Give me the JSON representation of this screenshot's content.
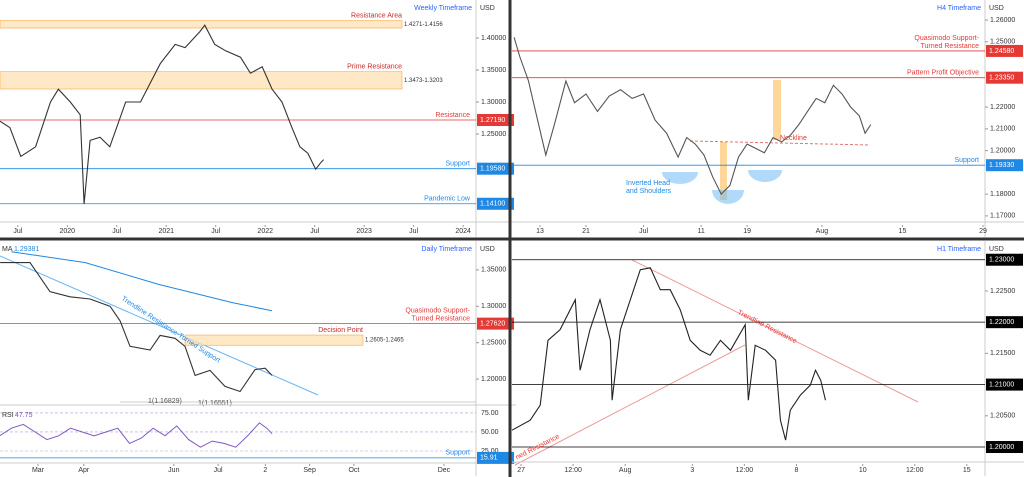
{
  "chart_data": [
    {
      "type": "line",
      "title": "Weekly Timeframe",
      "currency": "USD",
      "color": "#333333",
      "x": [
        2019.32,
        2019.42,
        2019.53,
        2019.68,
        2019.83,
        2019.91,
        2020.03,
        2020.13,
        2020.17,
        2020.23,
        2020.33,
        2020.43,
        2020.59,
        2020.74,
        2020.84,
        2020.94,
        2021.09,
        2021.19,
        2021.34,
        2021.39,
        2021.49,
        2021.6,
        2021.75,
        2021.85,
        2021.97,
        2022.07,
        2022.17,
        2022.27,
        2022.35,
        2022.43,
        2022.51,
        2022.56,
        2022.59
      ],
      "values": [
        1.27,
        1.26,
        1.215,
        1.23,
        1.3,
        1.32,
        1.3,
        1.28,
        1.141,
        1.24,
        1.245,
        1.23,
        1.3,
        1.3,
        1.33,
        1.36,
        1.39,
        1.385,
        1.41,
        1.42,
        1.39,
        1.38,
        1.37,
        1.345,
        1.355,
        1.32,
        1.3,
        1.26,
        1.23,
        1.22,
        1.195,
        1.205,
        1.21
      ],
      "xlim": [
        2019.32,
        2024.13
      ],
      "ylim": [
        1.1125,
        1.4594
      ],
      "xticks": [
        {
          "value": 2019.5,
          "label": "Jul"
        },
        2020,
        {
          "value": 2020.5,
          "label": "Jul"
        },
        2021,
        {
          "value": 2021.5,
          "label": "Jul"
        },
        2022,
        {
          "value": 2022.5,
          "label": "Jul"
        },
        2023,
        {
          "value": 2023.5,
          "label": "Jul"
        },
        2024
      ],
      "yticks": [
        {
          "value": 1.4,
          "label": "1.40000"
        },
        {
          "value": 1.35,
          "label": "1.35000"
        },
        {
          "value": 1.3,
          "label": "1.30000"
        },
        {
          "value": 1.25,
          "label": "1.25000"
        }
      ],
      "zones": [
        {
          "label": "Resistance Area",
          "range_label": "1.4271-1.4156",
          "high": 1.4271,
          "low": 1.4156
        },
        {
          "label": "Prime Resistance",
          "range_label": "1.3473-1.3203",
          "high": 1.3473,
          "low": 1.3203
        }
      ],
      "levels": [
        {
          "label": [
            "Resistance"
          ],
          "value": 1.2719,
          "value_label": "1.27190",
          "color": "#e53935"
        },
        {
          "label": [
            "Support"
          ],
          "value": 1.1958,
          "value_label": "1.19580",
          "color": "#1e88e5"
        },
        {
          "label": [
            "Pandemic Low"
          ],
          "value": 1.141,
          "value_label": "1.14100",
          "color": "#1e88e5"
        }
      ]
    },
    {
      "type": "line",
      "title": "H4 Timeframe",
      "currency": "USD",
      "color": "#555555",
      "x": [
        8.5,
        9.5,
        11,
        12.5,
        14,
        15.5,
        17.5,
        19,
        21,
        23,
        25,
        27,
        29,
        31,
        33,
        35,
        37,
        38.5,
        40,
        41.5,
        43,
        44.5,
        46,
        47.5,
        49,
        50.5,
        52,
        53.5,
        55,
        56.5,
        58,
        59.5,
        61,
        62.5,
        64,
        65.5,
        67,
        68.5,
        69.5,
        70.5
      ],
      "values": [
        1.252,
        1.243,
        1.232,
        1.215,
        1.198,
        1.212,
        1.232,
        1.222,
        1.226,
        1.218,
        1.225,
        1.228,
        1.224,
        1.226,
        1.214,
        1.208,
        1.197,
        1.206,
        1.203,
        1.198,
        1.188,
        1.18,
        1.184,
        1.197,
        1.203,
        1.201,
        1.199,
        1.206,
        1.204,
        1.207,
        1.212,
        1.218,
        1.224,
        1.222,
        1.23,
        1.226,
        1.22,
        1.216,
        1.208,
        1.212
      ],
      "xlim": [
        8.13,
        90.35
      ],
      "ylim": [
        1.1672,
        1.2692
      ],
      "xticks": [
        13,
        21,
        {
          "value": 31,
          "label": "Jul"
        },
        {
          "value": 41,
          "label": "11"
        },
        {
          "value": 49,
          "label": "19"
        },
        {
          "value": 62,
          "label": "Aug"
        },
        {
          "value": 76,
          "label": "15"
        },
        {
          "value": 90,
          "label": "29"
        }
      ],
      "yticks": [
        {
          "value": 1.26,
          "label": "1.26000"
        },
        {
          "value": 1.25,
          "label": "1.25000"
        },
        {
          "value": 1.22,
          "label": "1.22000"
        },
        {
          "value": 1.21,
          "label": "1.21000"
        },
        {
          "value": 1.2,
          "label": "1.20000"
        },
        {
          "value": 1.18,
          "label": "1.18000"
        },
        {
          "value": 1.17,
          "label": "1.17000"
        }
      ],
      "levels": [
        {
          "label": [
            "Quasimodo Support-",
            "Turned Resistance"
          ],
          "value": 1.2458,
          "value_label": "1.24580",
          "color": "#e53935"
        },
        {
          "label": [
            "Pattern Profit Objective"
          ],
          "value": 1.2335,
          "value_label": "1.23350",
          "color": "#e53935"
        },
        {
          "label": [
            "Support"
          ],
          "value": 1.1933,
          "value_label": "1.19330",
          "color": "#1e88e5"
        }
      ],
      "annotations": [
        [
          "Neckline"
        ],
        [
          "Inverted Head",
          "and Shoulders"
        ]
      ]
    },
    {
      "type": "line",
      "title": "Daily Timeframe",
      "currency": "USD",
      "color": "#333333",
      "x": [
        2.3,
        22.6,
        36.1,
        49.7,
        63.2,
        76.8,
        83.6,
        90.3,
        103.9,
        110.7,
        120.8,
        127.6,
        134.4,
        144.5,
        154.7,
        164.9,
        175,
        181.8,
        186.5
      ],
      "values": [
        1.36,
        1.36,
        1.32,
        1.313,
        1.31,
        1.3,
        1.28,
        1.245,
        1.24,
        1.26,
        1.256,
        1.245,
        1.205,
        1.212,
        1.19,
        1.183,
        1.213,
        1.215,
        1.205
      ],
      "xlim": [
        2.25,
        324.7
      ],
      "ylim": [
        1.1644,
        1.3897
      ],
      "xticks": [
        {
          "value": 28,
          "label": "Mar"
        },
        {
          "value": 59,
          "label": "Apr"
        },
        {
          "value": 120,
          "label": "Jun"
        },
        {
          "value": 150,
          "label": "Jul"
        },
        {
          "value": 182,
          "label": "2"
        },
        {
          "value": 212,
          "label": "Sep"
        },
        {
          "value": 242,
          "label": "Oct"
        },
        {
          "value": 303,
          "label": "Dec"
        }
      ],
      "yticks": [
        {
          "value": 1.35,
          "label": "1.35000"
        },
        {
          "value": 1.3,
          "label": "1.30000"
        },
        {
          "value": 1.25,
          "label": "1.25000"
        },
        {
          "value": 1.2,
          "label": "1.20000"
        }
      ],
      "zones": [
        {
          "label": "Decision Point",
          "range_label": "1.2605-1.2465",
          "high": 1.2605,
          "low": 1.2465
        }
      ],
      "levels": [
        {
          "label": [
            "Quasimodo Support-",
            "Turned Resistance"
          ],
          "value": 1.2762,
          "value_label": "1.27620",
          "color": "#e53935"
        }
      ],
      "ma": {
        "name": "MA",
        "last": 1.29381,
        "color": "#1e88e5",
        "x": [
          10,
          60,
          110,
          160,
          186.5
        ],
        "values": [
          1.375,
          1.36,
          1.33,
          1.305,
          1.29381
        ]
      },
      "annotations": [
        [
          "Trendline Resistance-Turned Support"
        ],
        [
          "1(1.16829)"
        ],
        [
          "1(1.16551)"
        ]
      ],
      "rsi": {
        "name": "RSI",
        "last": 47.75,
        "color": "#7e57c2",
        "x": [
          2,
          10,
          18,
          26,
          34,
          42,
          50,
          58,
          66,
          74,
          82,
          90,
          98,
          106,
          114,
          122,
          130,
          138,
          146,
          154,
          162,
          170,
          178,
          183,
          186.5
        ],
        "values": [
          45,
          55,
          60,
          50,
          40,
          45,
          55,
          50,
          45,
          50,
          55,
          35,
          42,
          55,
          45,
          58,
          40,
          30,
          38,
          35,
          30,
          45,
          62,
          55,
          47.75
        ],
        "ylim": [
          9.2,
          85.5
        ],
        "yticks": [
          {
            "value": 75,
            "label": "75.00"
          },
          {
            "value": 50,
            "label": "50.00"
          },
          {
            "value": 25,
            "label": "25.00"
          }
        ],
        "levels": [
          {
            "label": [
              "Support"
            ],
            "value": 15.91,
            "color": "#1e88e5"
          }
        ]
      }
    },
    {
      "type": "line",
      "title": "H1 Timeframe",
      "currency": "USD",
      "color": "#222222",
      "x": [
        -2.1,
        2.1,
        4.4,
        6.2,
        9,
        12.5,
        13.6,
        15.9,
        18.2,
        20.6,
        21,
        22.9,
        27.5,
        29.8,
        32.1,
        34.4,
        36.7,
        39,
        41.3,
        43.6,
        46,
        48.3,
        51.7,
        52.4,
        54,
        56.4,
        58.7,
        59.8,
        61,
        62.1,
        64.4,
        66.7,
        67.9,
        69.1,
        70.2
      ],
      "values": [
        1.2027,
        1.2043,
        1.2067,
        1.2171,
        1.2188,
        1.2236,
        1.2123,
        1.2188,
        1.2236,
        1.2171,
        1.2075,
        1.2188,
        1.2284,
        1.2287,
        1.2252,
        1.2252,
        1.222,
        1.2171,
        1.2155,
        1.2147,
        1.2171,
        1.2155,
        1.2196,
        1.2075,
        1.2163,
        1.2155,
        1.2139,
        1.2043,
        1.2011,
        1.2059,
        1.2083,
        1.2099,
        1.2123,
        1.2107,
        1.2075
      ],
      "xlim": [
        -2.1,
        107
      ],
      "ylim": [
        1.1976,
        1.233
      ],
      "xticks": [
        {
          "value": 0,
          "label": "27"
        },
        {
          "value": 12,
          "label": "12:00"
        },
        {
          "value": 24,
          "label": "Aug"
        },
        {
          "value": 39.5,
          "label": "3"
        },
        {
          "value": 51.5,
          "label": "12:00"
        },
        {
          "value": 63.5,
          "label": "8"
        },
        {
          "value": 78.8,
          "label": "10"
        },
        {
          "value": 90.8,
          "label": "12:00"
        },
        {
          "value": 102.8,
          "label": "15"
        }
      ],
      "yticks": [
        {
          "value": 1.225,
          "label": "1.22500"
        },
        {
          "value": 1.215,
          "label": "1.21500"
        },
        {
          "value": 1.205,
          "label": "1.20500"
        }
      ],
      "levels": [
        {
          "value": 1.23,
          "value_label": "1.23000",
          "color": "#000000"
        },
        {
          "value": 1.22,
          "value_label": "1.22000",
          "color": "#000000"
        },
        {
          "value": 1.21,
          "value_label": "1.21000",
          "color": "#000000"
        },
        {
          "value": 1.2,
          "value_label": "1.20000",
          "color": "#000000"
        }
      ],
      "annotations": [
        [
          "Trendline Resistance"
        ],
        [
          "ned Resistance"
        ]
      ]
    }
  ]
}
